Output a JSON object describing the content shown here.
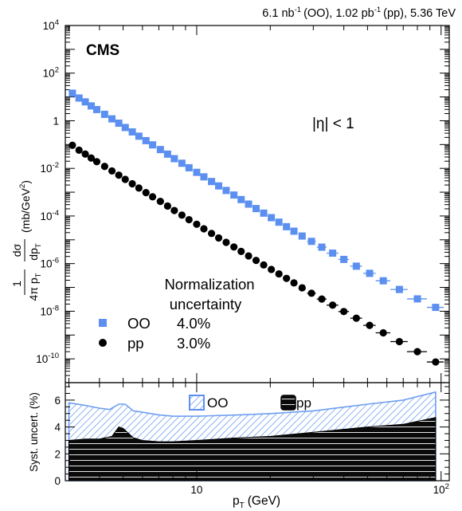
{
  "header": {
    "lumi_oo_value": "6.1 nb",
    "lumi_oo_exp": "-1",
    "lumi_oo_suffix": "(OO),",
    "lumi_pp_value": "1.02 pb",
    "lumi_pp_exp": "-1",
    "lumi_pp_suffix": "(pp), 5.36 TeV"
  },
  "experiment_label": "CMS",
  "colors": {
    "oo": "#5b8ff0",
    "pp": "#000000",
    "oo_band": "#6e9ef0",
    "pp_band": "#111111"
  },
  "chart_data": [
    {
      "type": "scatter",
      "panel": "main",
      "ylabel": {
        "frac_num": "1",
        "frac_den_prefix": "4π p",
        "frac_den_sub": "T",
        "deriv_num": "dσ",
        "deriv_den": "dp",
        "deriv_den_sub": "T",
        "unit": "(mb/GeV",
        "unit_exp": "2",
        "unit_close": ")"
      },
      "y_scale": "log",
      "x_scale": "log",
      "xlim": [
        2.9,
        108
      ],
      "ylim": [
        1e-11,
        10000
      ],
      "y_ticks": [
        {
          "value": 10000,
          "base": "10",
          "exp": "4"
        },
        {
          "value": 100,
          "base": "10",
          "exp": "2"
        },
        {
          "value": 1,
          "base": "1",
          "exp": ""
        },
        {
          "value": 0.01,
          "base": "10",
          "exp": "-2"
        },
        {
          "value": 0.0001,
          "base": "10",
          "exp": "-4"
        },
        {
          "value": 1e-06,
          "base": "10",
          "exp": "-6"
        },
        {
          "value": 1e-08,
          "base": "10",
          "exp": "-8"
        },
        {
          "value": 1e-10,
          "base": "10",
          "exp": "-10"
        }
      ],
      "annotation_eta": "|η| < 1",
      "legend": {
        "title_line1": "Normalization",
        "title_line2": "uncertainty",
        "placement": "bottom-left",
        "entries": [
          {
            "name": "OO",
            "value": "4.0%"
          },
          {
            "name": "pp",
            "value": "3.0%"
          }
        ]
      },
      "series": [
        {
          "name": "OO",
          "marker": "square",
          "points": [
            {
              "x": 3.1,
              "y": 14.4
            },
            {
              "x": 3.3,
              "y": 9.0
            },
            {
              "x": 3.5,
              "y": 6.2
            },
            {
              "x": 3.7,
              "y": 4.2
            },
            {
              "x": 3.9,
              "y": 2.95
            },
            {
              "x": 4.2,
              "y": 1.86
            },
            {
              "x": 4.5,
              "y": 1.2
            },
            {
              "x": 4.8,
              "y": 0.79
            },
            {
              "x": 5.1,
              "y": 0.52
            },
            {
              "x": 5.45,
              "y": 0.34
            },
            {
              "x": 5.8,
              "y": 0.225
            },
            {
              "x": 6.2,
              "y": 0.146
            },
            {
              "x": 6.6,
              "y": 0.097
            },
            {
              "x": 7.1,
              "y": 0.0615
            },
            {
              "x": 7.6,
              "y": 0.0396
            },
            {
              "x": 8.1,
              "y": 0.0256
            },
            {
              "x": 8.7,
              "y": 0.0164
            },
            {
              "x": 9.3,
              "y": 0.0106
            },
            {
              "x": 10.0,
              "y": 0.0068
            },
            {
              "x": 10.7,
              "y": 0.0044
            },
            {
              "x": 11.5,
              "y": 0.0028
            },
            {
              "x": 12.3,
              "y": 0.00183
            },
            {
              "x": 13.2,
              "y": 0.00118
            },
            {
              "x": 14.2,
              "y": 0.00076
            },
            {
              "x": 15.2,
              "y": 0.00049
            },
            {
              "x": 16.3,
              "y": 0.000315
            },
            {
              "x": 17.5,
              "y": 0.000205
            },
            {
              "x": 18.8,
              "y": 0.000132
            },
            {
              "x": 20.2,
              "y": 8.5e-05
            },
            {
              "x": 21.7,
              "y": 5.5e-05
            },
            {
              "x": 23.3,
              "y": 3.55e-05
            },
            {
              "x": 25.0,
              "y": 2.3e-05
            },
            {
              "x": 27.0,
              "y": 1.44e-05
            },
            {
              "x": 29.5,
              "y": 8.6e-06
            },
            {
              "x": 32.5,
              "y": 4.9e-06
            },
            {
              "x": 36.0,
              "y": 2.75e-06
            },
            {
              "x": 40.0,
              "y": 1.5e-06
            },
            {
              "x": 45.0,
              "y": 7.8e-07
            },
            {
              "x": 51.0,
              "y": 3.9e-07
            },
            {
              "x": 58.0,
              "y": 1.9e-07
            },
            {
              "x": 67.5,
              "y": 8.2e-08
            },
            {
              "x": 80.0,
              "y": 3.3e-08
            },
            {
              "x": 95.0,
              "y": 1.45e-08
            }
          ],
          "x_halfwidths": [
            0,
            0,
            0,
            0,
            0,
            0,
            0,
            0,
            0,
            0,
            0,
            0,
            0,
            0,
            0,
            0,
            0,
            0,
            0,
            0,
            0,
            0,
            0,
            0,
            0,
            0,
            0,
            0,
            0,
            0,
            0,
            0,
            0,
            1.2,
            1.5,
            2.0,
            2.0,
            2.5,
            3.0,
            4.0,
            5.5,
            7.5,
            7.5
          ]
        },
        {
          "name": "pp",
          "marker": "circle",
          "points": [
            {
              "x": 3.1,
              "y": 0.093
            },
            {
              "x": 3.3,
              "y": 0.058
            },
            {
              "x": 3.5,
              "y": 0.04
            },
            {
              "x": 3.7,
              "y": 0.0272
            },
            {
              "x": 3.9,
              "y": 0.0191
            },
            {
              "x": 4.2,
              "y": 0.0121
            },
            {
              "x": 4.5,
              "y": 0.0078
            },
            {
              "x": 4.8,
              "y": 0.0052
            },
            {
              "x": 5.1,
              "y": 0.00345
            },
            {
              "x": 5.45,
              "y": 0.00226
            },
            {
              "x": 5.8,
              "y": 0.00149
            },
            {
              "x": 6.2,
              "y": 0.00096
            },
            {
              "x": 6.6,
              "y": 0.00064
            },
            {
              "x": 7.1,
              "y": 0.00041
            },
            {
              "x": 7.6,
              "y": 0.000262
            },
            {
              "x": 8.1,
              "y": 0.00017
            },
            {
              "x": 8.7,
              "y": 0.000109
            },
            {
              "x": 9.3,
              "y": 7e-05
            },
            {
              "x": 10.0,
              "y": 4.5e-05
            },
            {
              "x": 10.7,
              "y": 2.9e-05
            },
            {
              "x": 11.5,
              "y": 1.85e-05
            },
            {
              "x": 12.3,
              "y": 1.2e-05
            },
            {
              "x": 13.2,
              "y": 7.8e-06
            },
            {
              "x": 14.2,
              "y": 5e-06
            },
            {
              "x": 15.2,
              "y": 3.25e-06
            },
            {
              "x": 16.3,
              "y": 2.1e-06
            },
            {
              "x": 17.5,
              "y": 1.36e-06
            },
            {
              "x": 18.8,
              "y": 8.8e-07
            },
            {
              "x": 20.2,
              "y": 5.7e-07
            },
            {
              "x": 21.7,
              "y": 3.7e-07
            },
            {
              "x": 23.3,
              "y": 2.4e-07
            },
            {
              "x": 25.0,
              "y": 1.55e-07
            },
            {
              "x": 27.0,
              "y": 9.6e-08
            },
            {
              "x": 29.5,
              "y": 5.7e-08
            },
            {
              "x": 32.5,
              "y": 3.25e-08
            },
            {
              "x": 36.0,
              "y": 1.8e-08
            },
            {
              "x": 40.0,
              "y": 9.7e-09
            },
            {
              "x": 45.0,
              "y": 5.1e-09
            },
            {
              "x": 51.0,
              "y": 2.55e-09
            },
            {
              "x": 58.0,
              "y": 1.24e-09
            },
            {
              "x": 67.5,
              "y": 5.3e-10
            },
            {
              "x": 80.0,
              "y": 2e-10
            },
            {
              "x": 95.0,
              "y": 7.4e-11
            }
          ],
          "x_halfwidths": [
            0,
            0,
            0,
            0,
            0,
            0,
            0,
            0,
            0,
            0,
            0,
            0,
            0,
            0,
            0,
            0,
            0,
            0,
            0,
            0,
            0,
            0,
            0,
            0,
            0,
            0,
            0,
            0,
            0,
            0,
            0,
            0,
            0,
            1.2,
            1.5,
            2.0,
            2.0,
            2.5,
            3.0,
            4.0,
            5.5,
            7.5,
            7.5
          ]
        }
      ]
    },
    {
      "type": "area",
      "panel": "ratio",
      "ylabel": "Syst. uncert. (%)",
      "xlabel": "p",
      "xlabel_sub": "T",
      "xlabel_unit": "(GeV)",
      "x_scale": "log",
      "xlim": [
        2.9,
        108
      ],
      "ylim": [
        0,
        7.3
      ],
      "y_ticks": [
        "0",
        "2",
        "4",
        "6"
      ],
      "x_ticks": [
        {
          "value": 10,
          "base": "10",
          "exp": ""
        },
        {
          "value": 100,
          "base": "10",
          "exp": "2"
        }
      ],
      "legend": {
        "placement": "top",
        "entries": [
          "OO",
          "pp"
        ]
      },
      "series": [
        {
          "name": "OO",
          "x": [
            3.0,
            3.5,
            4.0,
            4.4,
            4.8,
            5.1,
            5.5,
            6.0,
            7.0,
            8.0,
            10.0,
            15.0,
            20.0,
            30.0,
            50.0,
            70.0,
            95.0
          ],
          "values": [
            5.8,
            5.6,
            5.4,
            5.3,
            5.7,
            5.7,
            5.2,
            5.1,
            4.9,
            4.8,
            4.8,
            4.9,
            5.0,
            5.2,
            5.7,
            6.0,
            6.6
          ]
        },
        {
          "name": "pp",
          "x": [
            3.0,
            3.5,
            4.0,
            4.5,
            4.8,
            5.0,
            5.5,
            6.0,
            7.0,
            8.0,
            10.0,
            15.0,
            20.0,
            30.0,
            50.0,
            70.0,
            95.0
          ],
          "values": [
            3.0,
            3.1,
            3.1,
            3.3,
            4.0,
            3.9,
            3.2,
            3.0,
            2.9,
            2.9,
            3.0,
            3.2,
            3.3,
            3.6,
            4.0,
            4.2,
            4.7
          ]
        }
      ]
    }
  ]
}
